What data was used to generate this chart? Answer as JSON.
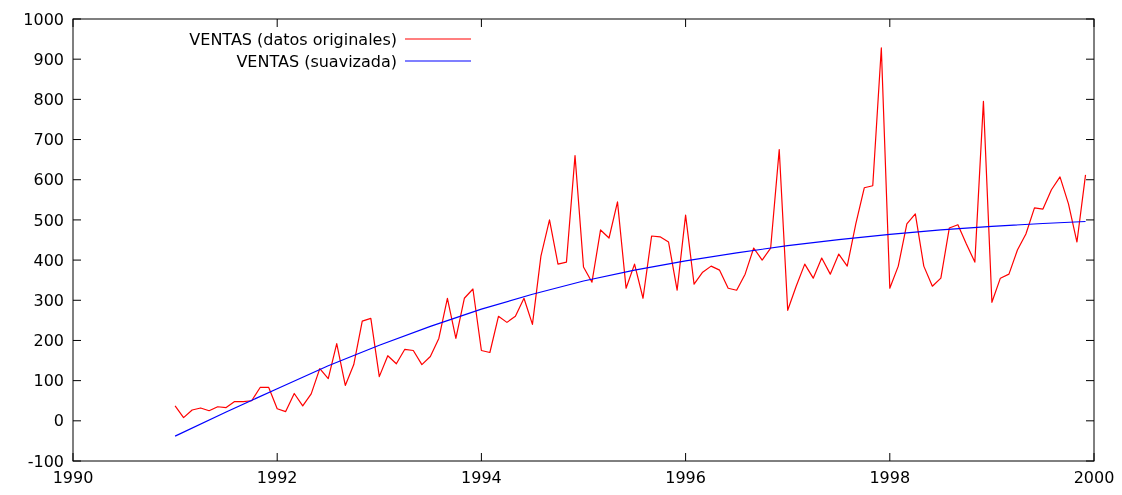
{
  "chart_data": {
    "type": "line",
    "xlim": [
      1990,
      2000
    ],
    "xticks": [
      1990,
      1992,
      1994,
      1996,
      1998,
      2000
    ],
    "ylim": [
      -100,
      1000
    ],
    "yticks": [
      -100,
      0,
      100,
      200,
      300,
      400,
      500,
      600,
      700,
      800,
      900,
      1000
    ],
    "grid": false,
    "legend": "top left",
    "marker": "none",
    "line_style": "solid",
    "series": [
      {
        "name": "VENTAS (datos originales)",
        "color": "#ff0000",
        "x": [
          1991,
          1991.083,
          1991.167,
          1991.25,
          1991.333,
          1991.417,
          1991.5,
          1991.583,
          1991.667,
          1991.75,
          1991.833,
          1991.917,
          1992,
          1992.083,
          1992.167,
          1992.25,
          1992.333,
          1992.417,
          1992.5,
          1992.583,
          1992.667,
          1992.75,
          1992.833,
          1992.917,
          1993,
          1993.083,
          1993.167,
          1993.25,
          1993.333,
          1993.417,
          1993.5,
          1993.583,
          1993.667,
          1993.75,
          1993.833,
          1993.917,
          1994,
          1994.083,
          1994.167,
          1994.25,
          1994.333,
          1994.417,
          1994.5,
          1994.583,
          1994.667,
          1994.75,
          1994.833,
          1994.917,
          1995,
          1995.083,
          1995.167,
          1995.25,
          1995.333,
          1995.417,
          1995.5,
          1995.583,
          1995.667,
          1995.75,
          1995.833,
          1995.917,
          1996,
          1996.083,
          1996.167,
          1996.25,
          1996.333,
          1996.417,
          1996.5,
          1996.583,
          1996.667,
          1996.75,
          1996.833,
          1996.917,
          1997,
          1997.083,
          1997.167,
          1997.25,
          1997.333,
          1997.417,
          1997.5,
          1997.583,
          1997.667,
          1997.75,
          1997.833,
          1997.917,
          1998,
          1998.083,
          1998.167,
          1998.25,
          1998.333,
          1998.417,
          1998.5,
          1998.583,
          1998.667,
          1998.75,
          1998.833,
          1998.917,
          1999,
          1999.083,
          1999.167,
          1999.25,
          1999.333,
          1999.417,
          1999.5,
          1999.583,
          1999.667,
          1999.75,
          1999.833,
          1999.917
        ],
        "values": [
          37,
          8,
          27,
          32,
          25,
          35,
          33,
          48,
          48,
          50,
          83,
          83,
          30,
          23,
          68,
          37,
          67,
          130,
          105,
          192,
          88,
          140,
          248,
          255,
          110,
          162,
          142,
          178,
          175,
          140,
          160,
          205,
          305,
          205,
          305,
          328,
          175,
          170,
          260,
          245,
          260,
          305,
          240,
          410,
          500,
          390,
          395,
          660,
          383,
          345,
          475,
          455,
          545,
          330,
          390,
          305,
          460,
          458,
          445,
          325,
          512,
          340,
          370,
          385,
          375,
          330,
          325,
          365,
          430,
          400,
          430,
          675,
          275,
          335,
          390,
          355,
          405,
          365,
          415,
          385,
          490,
          580,
          585,
          928,
          330,
          385,
          490,
          515,
          385,
          335,
          355,
          480,
          488,
          440,
          395,
          795,
          295,
          355,
          365,
          425,
          465,
          530,
          527,
          575,
          607,
          540,
          445,
          612
        ]
      },
      {
        "name": "VENTAS (suavizada)",
        "color": "#0000ff",
        "x": [
          1991,
          1991.5,
          1992,
          1992.5,
          1993,
          1993.5,
          1994,
          1994.5,
          1995,
          1995.5,
          1996,
          1996.5,
          1997,
          1997.5,
          1998,
          1998.5,
          1999,
          1999.5,
          1999.917
        ],
        "values": [
          -38,
          22,
          80,
          137,
          188,
          235,
          278,
          315,
          348,
          375,
          398,
          418,
          436,
          451,
          464,
          475,
          484,
          491,
          496
        ]
      }
    ]
  }
}
